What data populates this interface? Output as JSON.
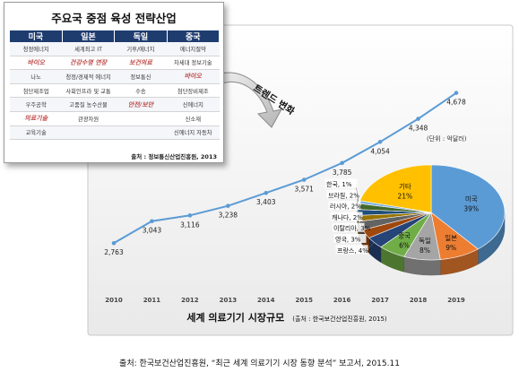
{
  "inset": {
    "title": "주요국 중점 육성 전략산업",
    "columns": [
      "미국",
      "일본",
      "독일",
      "중국"
    ],
    "rows": [
      [
        {
          "t": "청정에너지"
        },
        {
          "t": "세계최고 IT"
        },
        {
          "t": "기후/에너지"
        },
        {
          "t": "에너지절약"
        }
      ],
      [
        {
          "t": "바이오",
          "hl": true
        },
        {
          "t": "건강수명 연장",
          "hl": true
        },
        {
          "t": "보건의료",
          "hl": true
        },
        {
          "t": "차세대 정보기술"
        }
      ],
      [
        {
          "t": "나노"
        },
        {
          "t": "청정/경제적 에너지"
        },
        {
          "t": "정보통신"
        },
        {
          "t": "바이오",
          "hl": true
        }
      ],
      [
        {
          "t": "첨단제조업"
        },
        {
          "t": "사회인프라 및 교통"
        },
        {
          "t": "수송"
        },
        {
          "t": "첨단장비제조"
        }
      ],
      [
        {
          "t": "우주공학"
        },
        {
          "t": "고품질 농수산물"
        },
        {
          "t": "안전/보안",
          "hl": true
        },
        {
          "t": "신에너지"
        }
      ],
      [
        {
          "t": "의료기술",
          "hl": true
        },
        {
          "t": "관광자원"
        },
        {
          "t": ""
        },
        {
          "t": "신소재"
        }
      ],
      [
        {
          "t": "교육기술"
        },
        {
          "t": ""
        },
        {
          "t": ""
        },
        {
          "t": "신에너지 자동차"
        }
      ]
    ],
    "source": "출처 : 정보통신산업진흥원, 2013"
  },
  "arrow_label": "트렌드 변화",
  "chart_data": [
    {
      "type": "line",
      "title": "세계 의료기기 시장규모",
      "subtitle": "(출처 : 한국보건산업진흥원, 2015)",
      "unit_label": "(단위 : 억달러)",
      "x": [
        "2010",
        "2011",
        "2012",
        "2013",
        "2014",
        "2015",
        "2016",
        "2017",
        "2018",
        "2019"
      ],
      "series": [
        {
          "values": [
            2763,
            3043,
            3116,
            3238,
            3403,
            3571,
            3785,
            4054,
            4348,
            4678
          ],
          "color": "#5b9bd5"
        }
      ],
      "ylim": [
        2000,
        5200
      ],
      "grid": false
    },
    {
      "type": "pie",
      "style": "3d",
      "slices": [
        {
          "label": "미국",
          "value": 39,
          "color": "#5b9bd5"
        },
        {
          "label": "일본",
          "value": 9,
          "color": "#ed7d31"
        },
        {
          "label": "독일",
          "value": 8,
          "color": "#a5a5a5"
        },
        {
          "label": "중국",
          "value": 6,
          "color": "#70ad47"
        },
        {
          "label": "프랑스",
          "value": 4,
          "color": "#264478"
        },
        {
          "label": "영국",
          "value": 3,
          "color": "#9e480e"
        },
        {
          "label": "이탈리아",
          "value": 3,
          "color": "#636363"
        },
        {
          "label": "캐나다",
          "value": 2,
          "color": "#997300"
        },
        {
          "label": "러시아",
          "value": 2,
          "color": "#1f4e79"
        },
        {
          "label": "브라질",
          "value": 2,
          "color": "#43682b"
        },
        {
          "label": "한국",
          "value": 1,
          "color": "#7cafdd"
        },
        {
          "label": "기타",
          "value": 21,
          "color": "#ffc000"
        }
      ]
    }
  ],
  "footer": "출처: 한국보건산업진흥원, “최근 세계 의료기기 시장 동향 분석” 보고서, 2015.11"
}
